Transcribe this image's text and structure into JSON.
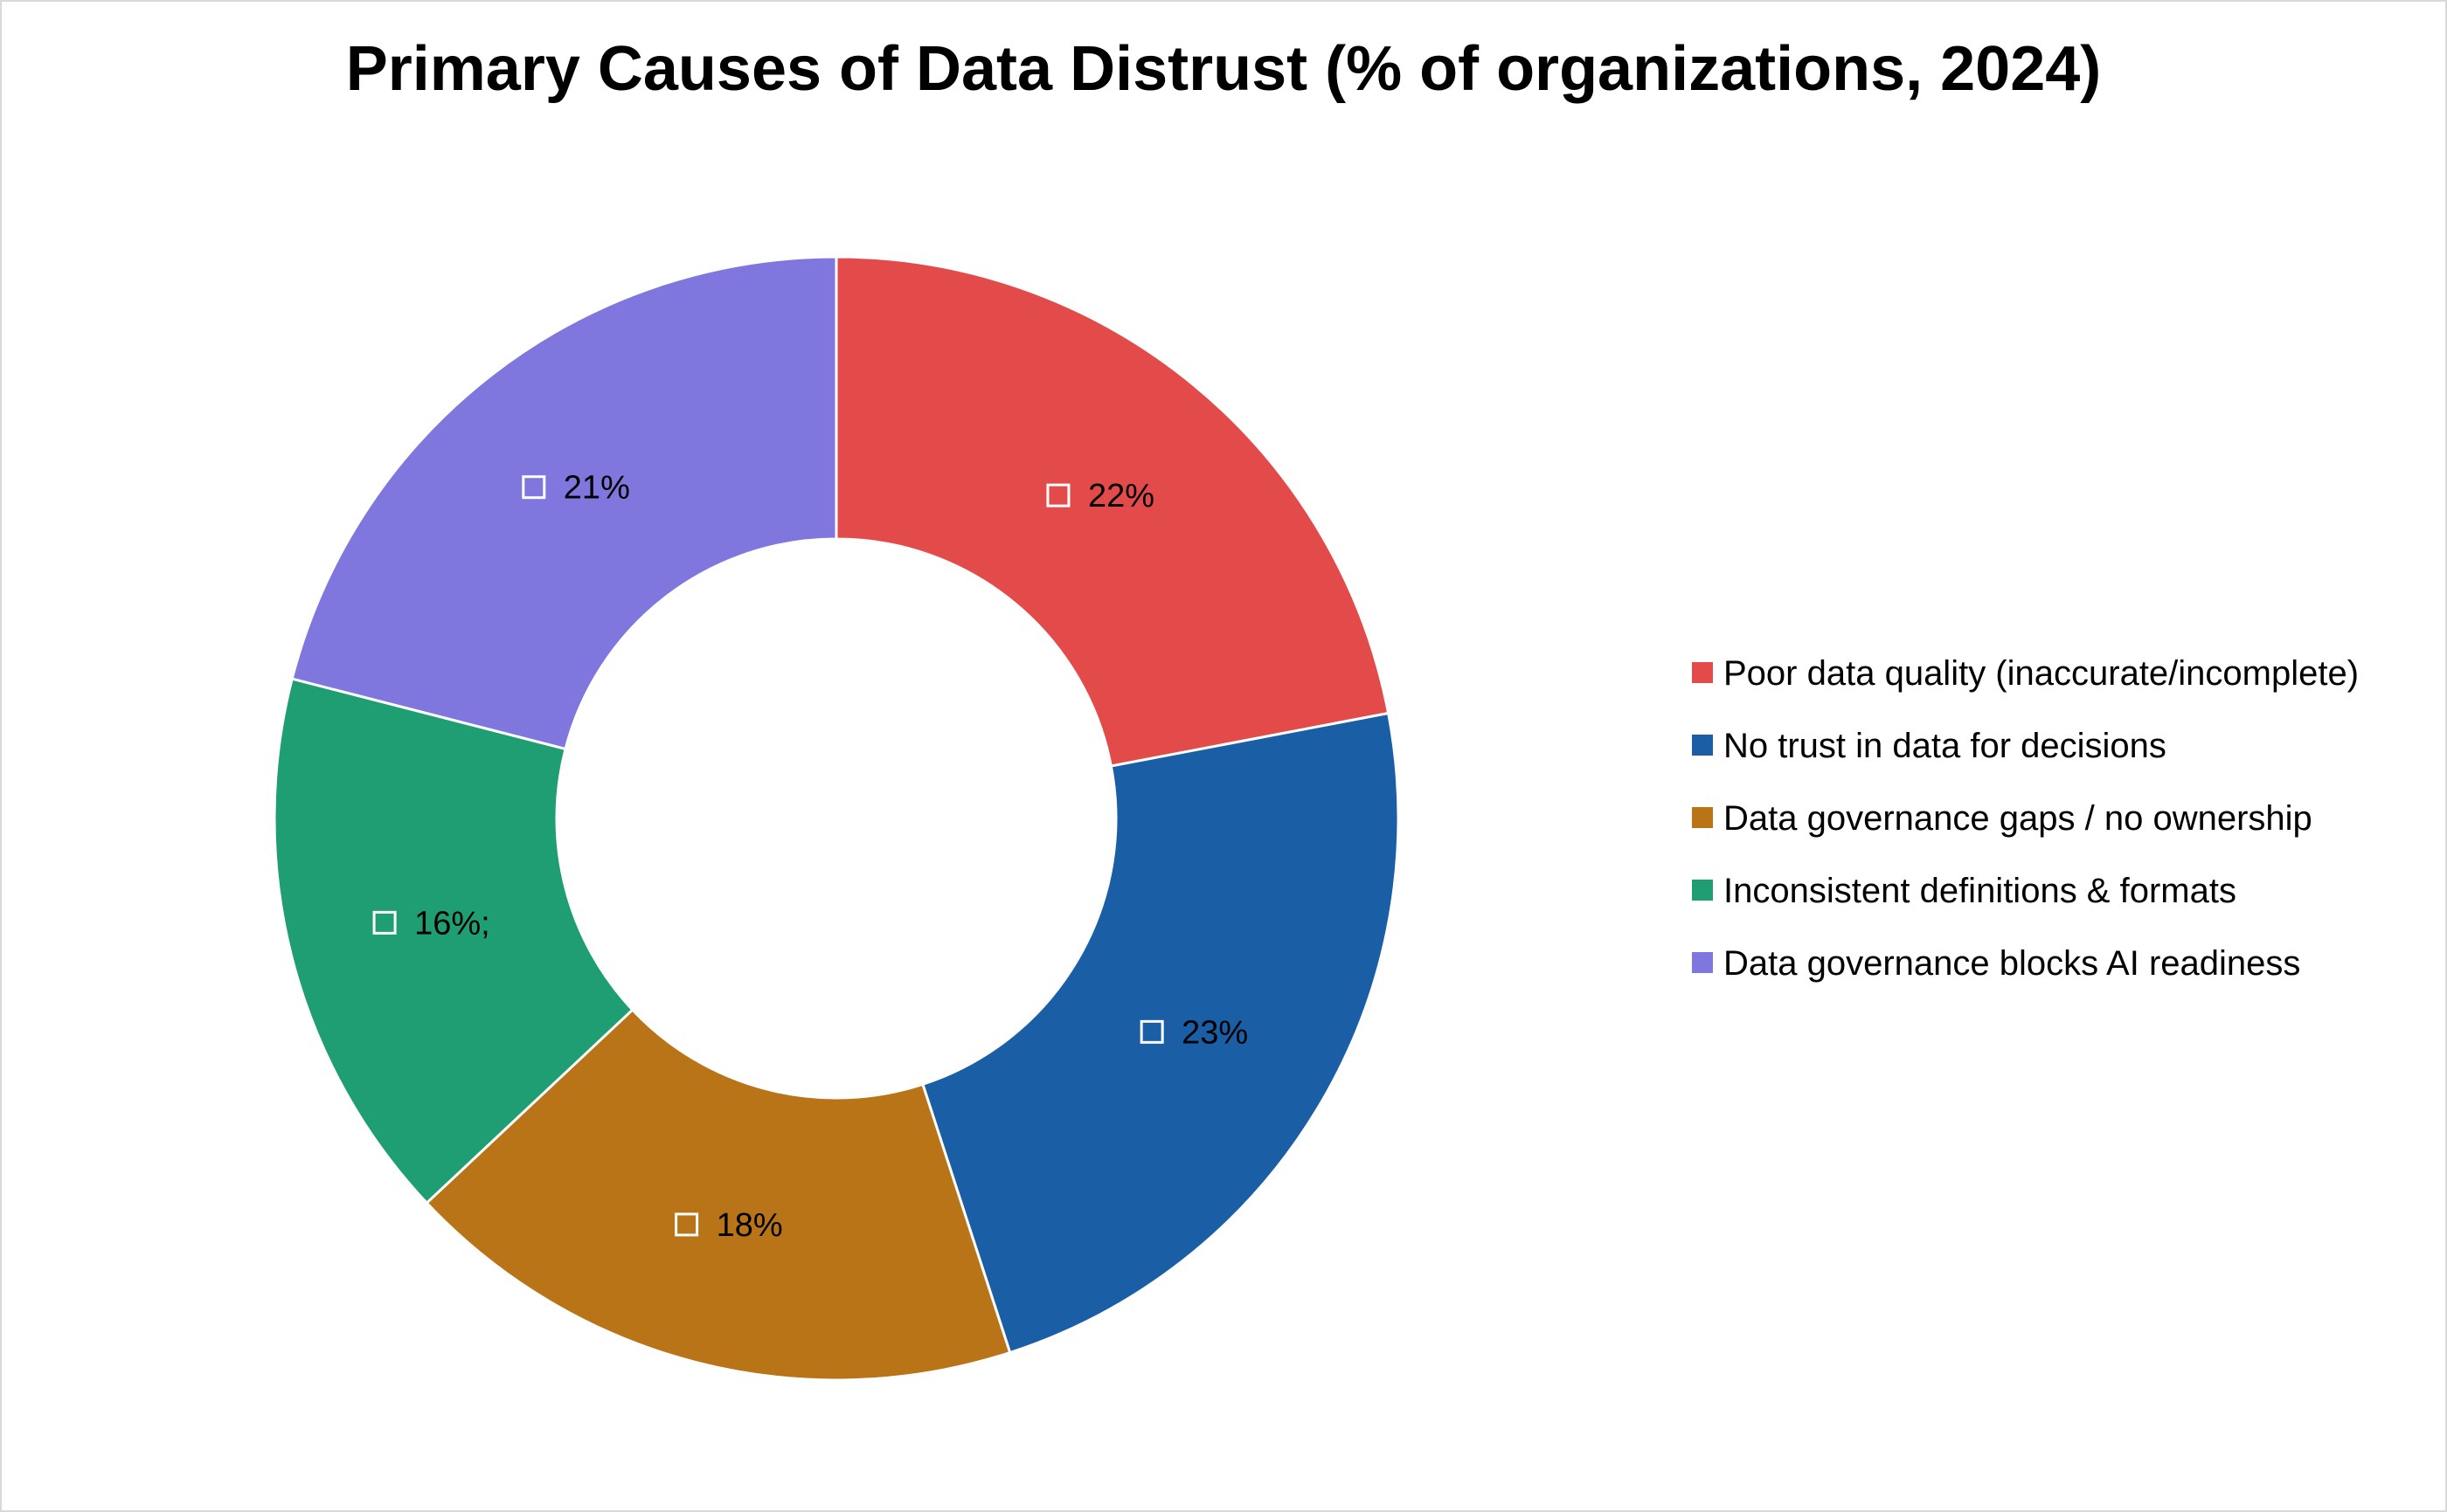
{
  "chart_data": {
    "type": "pie",
    "variant": "donut",
    "title": "Primary Causes of Data Distrust (% of organizations, 2024)",
    "categories": [
      "Poor data quality (inaccurate/incomplete)",
      "No trust in data for decisions",
      "Data governance gaps / no ownership",
      "Inconsistent definitions & formats",
      "Data governance blocks AI readiness"
    ],
    "values": [
      22,
      23,
      18,
      16,
      21
    ],
    "data_labels": [
      "22%",
      "23%",
      "18%",
      "16%;",
      "21%"
    ],
    "colors": [
      "#e34b4b",
      "#1a5ea6",
      "#b97418",
      "#1f9e73",
      "#7f77de"
    ],
    "legend_position": "right",
    "start_angle_deg": 0,
    "direction": "clockwise"
  }
}
